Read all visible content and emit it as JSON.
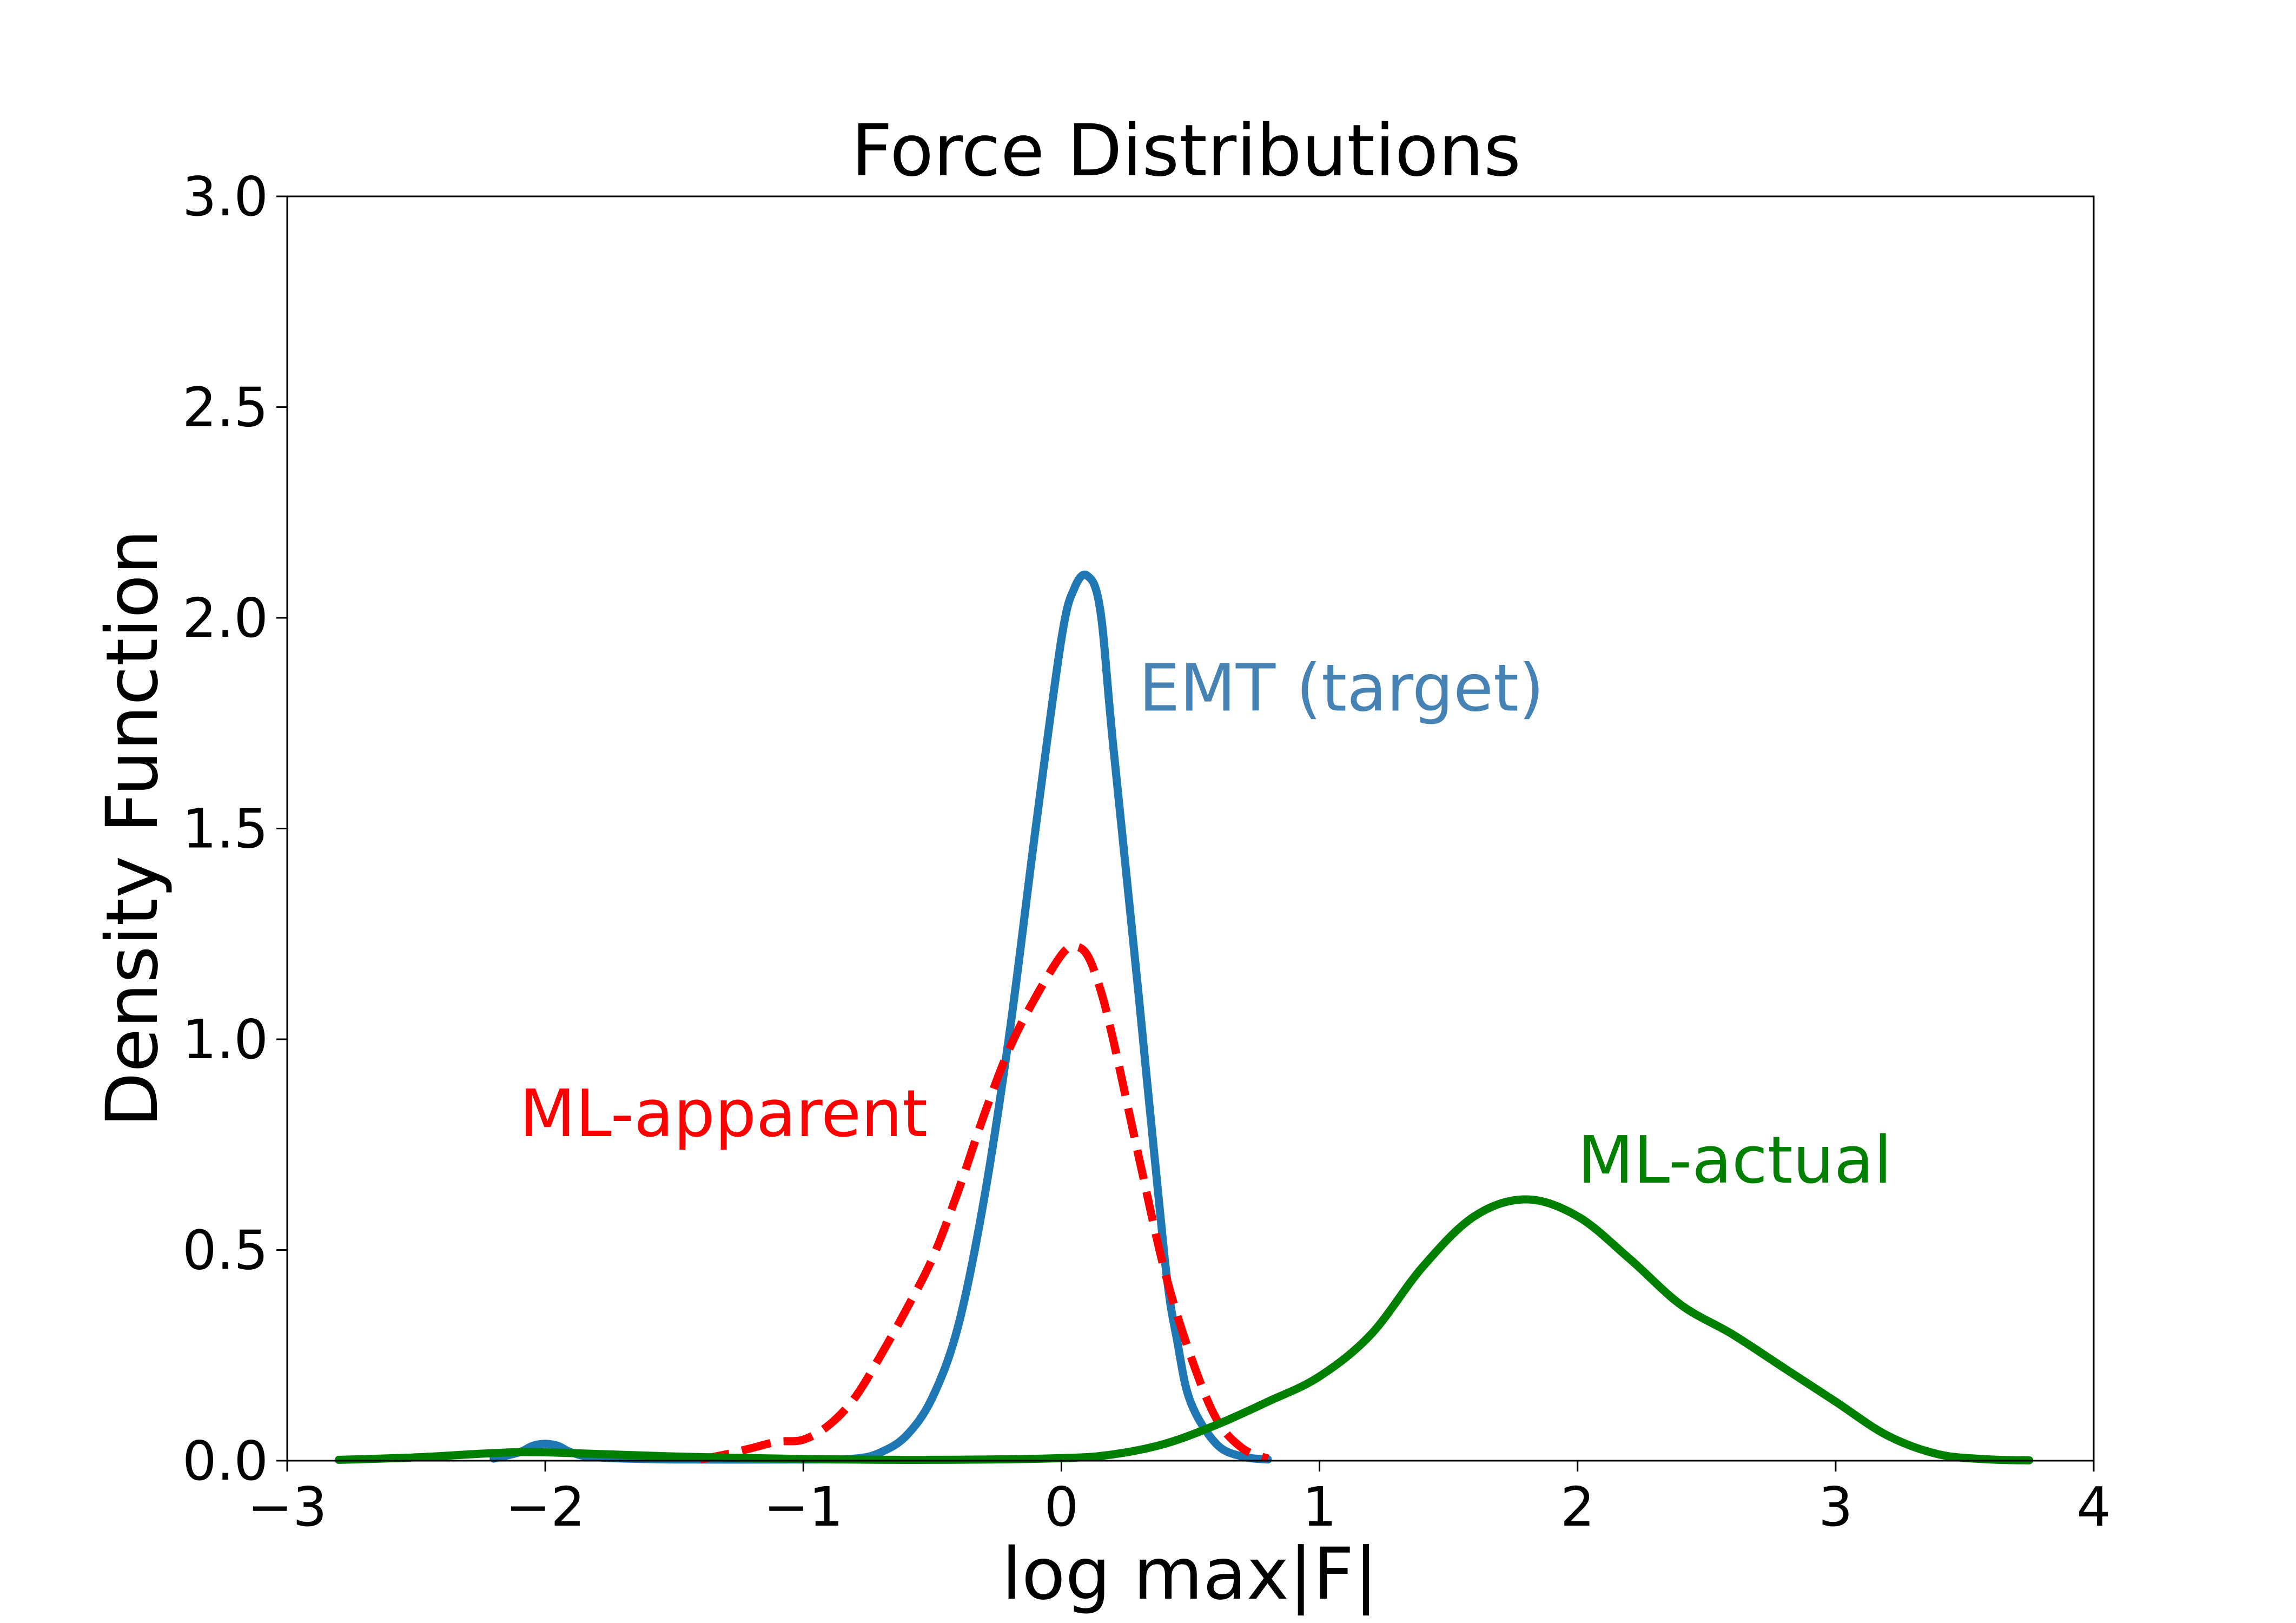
{
  "chart_data": {
    "type": "line",
    "title": "Force Distributions",
    "xlabel": "log max|F|",
    "ylabel": "Density Function",
    "xlim": [
      -3,
      4
    ],
    "ylim": [
      0,
      3
    ],
    "xticks": [
      -3,
      -2,
      -1,
      0,
      1,
      2,
      3,
      4
    ],
    "xtick_labels": [
      "−3",
      "−2",
      "−1",
      "0",
      "1",
      "2",
      "3",
      "4"
    ],
    "yticks": [
      0,
      0.5,
      1,
      1.5,
      2,
      2.5,
      3
    ],
    "ytick_labels": [
      "0.0",
      "0.5",
      "1.0",
      "1.5",
      "2.0",
      "2.5",
      "3.0"
    ],
    "grid": false,
    "legend": "none",
    "series": [
      {
        "name": "EMT (target)",
        "color": "#1f77b4",
        "style": "solid",
        "label_anchor": [
          0.3,
          1.78
        ],
        "label_color": "#4682b4",
        "x": [
          -2.2,
          -2.1,
          -2.05,
          -2.0,
          -1.95,
          -1.9,
          -1.8,
          -1.5,
          -1.0,
          -0.8,
          -0.7,
          -0.6,
          -0.5,
          -0.4,
          -0.3,
          -0.2,
          -0.1,
          0.0,
          0.05,
          0.1,
          0.15,
          0.2,
          0.3,
          0.4,
          0.45,
          0.5,
          0.6,
          0.7,
          0.8
        ],
        "y": [
          0.005,
          0.02,
          0.035,
          0.04,
          0.035,
          0.02,
          0.008,
          0.003,
          0.003,
          0.005,
          0.02,
          0.06,
          0.15,
          0.32,
          0.62,
          1.02,
          1.5,
          1.95,
          2.07,
          2.1,
          2.02,
          1.7,
          1.1,
          0.48,
          0.28,
          0.14,
          0.04,
          0.01,
          0.003
        ]
      },
      {
        "name": "ML-apparent",
        "color": "#ff0000",
        "style": "dashed",
        "label_anchor": [
          -2.1,
          0.77
        ],
        "label_color": "#ff0000",
        "x": [
          -1.4,
          -1.3,
          -1.2,
          -1.1,
          -1.0,
          -0.9,
          -0.8,
          -0.7,
          -0.6,
          -0.5,
          -0.4,
          -0.3,
          -0.2,
          -0.1,
          0.0,
          0.05,
          0.1,
          0.15,
          0.2,
          0.3,
          0.4,
          0.5,
          0.6,
          0.7,
          0.8
        ],
        "y": [
          0.003,
          0.015,
          0.03,
          0.045,
          0.05,
          0.085,
          0.15,
          0.25,
          0.36,
          0.48,
          0.64,
          0.82,
          0.98,
          1.1,
          1.2,
          1.22,
          1.2,
          1.12,
          1.0,
          0.72,
          0.45,
          0.25,
          0.1,
          0.03,
          0.005
        ]
      },
      {
        "name": "ML-actual",
        "color": "#008000",
        "style": "solid",
        "label_anchor": [
          2.0,
          0.66
        ],
        "label_color": "#008000",
        "x": [
          -2.8,
          -2.5,
          -2.2,
          -2.0,
          -1.5,
          -1.0,
          -0.5,
          0.0,
          0.2,
          0.4,
          0.6,
          0.8,
          1.0,
          1.2,
          1.4,
          1.6,
          1.8,
          2.0,
          2.2,
          2.4,
          2.6,
          2.8,
          3.0,
          3.2,
          3.4,
          3.6,
          3.75
        ],
        "y": [
          0.002,
          0.008,
          0.018,
          0.02,
          0.01,
          0.004,
          0.002,
          0.006,
          0.015,
          0.04,
          0.085,
          0.14,
          0.2,
          0.3,
          0.46,
          0.58,
          0.62,
          0.58,
          0.48,
          0.37,
          0.3,
          0.22,
          0.14,
          0.06,
          0.015,
          0.003,
          0.001
        ]
      }
    ]
  }
}
